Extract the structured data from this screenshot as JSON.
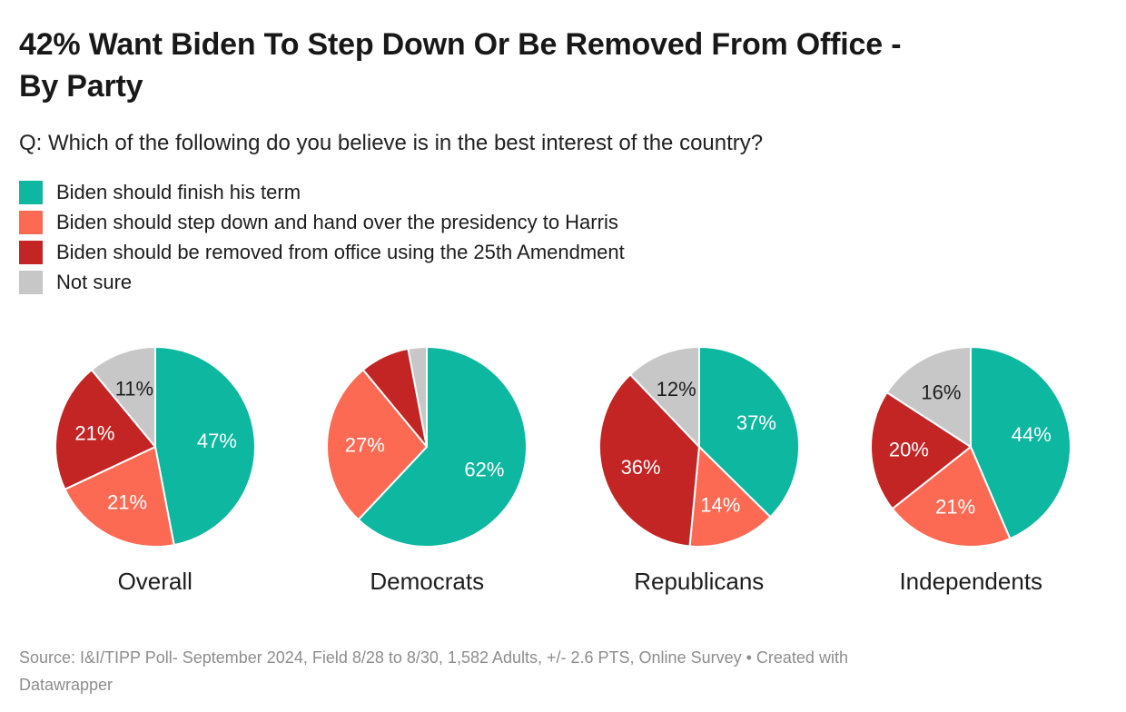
{
  "header": {
    "title": "42% Want Biden To Step Down Or Be Removed From Office -\nBy Party",
    "subtitle": "Q: Which of the following do you believe is in the best interest of the country?"
  },
  "chart_data": {
    "type": "pie",
    "title": "42% Want Biden To Step Down Or Be Removed From Office - By Party",
    "categories": [
      "Biden should finish his term",
      "Biden should step down and hand over the presidency to Harris",
      "Biden should be removed from office using the 25th Amendment",
      "Not sure"
    ],
    "colors": [
      "#0db7a0",
      "#fc6a54",
      "#c32525",
      "#c7c7c7"
    ],
    "label_colors": [
      "#ffffff",
      "#ffffff",
      "#ffffff",
      "#1d1d1d"
    ],
    "legend_position": "top-left",
    "start_angle_deg": 0,
    "direction": "clockwise",
    "groups": [
      {
        "name": "Overall",
        "values": [
          47,
          21,
          21,
          11
        ],
        "labels": [
          "47%",
          "21%",
          "21%",
          "11%"
        ]
      },
      {
        "name": "Democrats",
        "values": [
          62,
          27,
          8,
          3
        ],
        "labels": [
          "62%",
          "27%",
          "",
          ""
        ]
      },
      {
        "name": "Republicans",
        "values": [
          37,
          14,
          36,
          12
        ],
        "labels": [
          "37%",
          "14%",
          "36%",
          "12%"
        ]
      },
      {
        "name": "Independents",
        "values": [
          44,
          21,
          20,
          16
        ],
        "labels": [
          "44%",
          "21%",
          "20%",
          "16%"
        ]
      }
    ]
  },
  "footer": {
    "source": "Source: I&I/TIPP Poll- September 2024, Field 8/28 to 8/30, 1,582 Adults, +/- 2.6 PTS, Online Survey • Created with\nDatawrapper"
  }
}
